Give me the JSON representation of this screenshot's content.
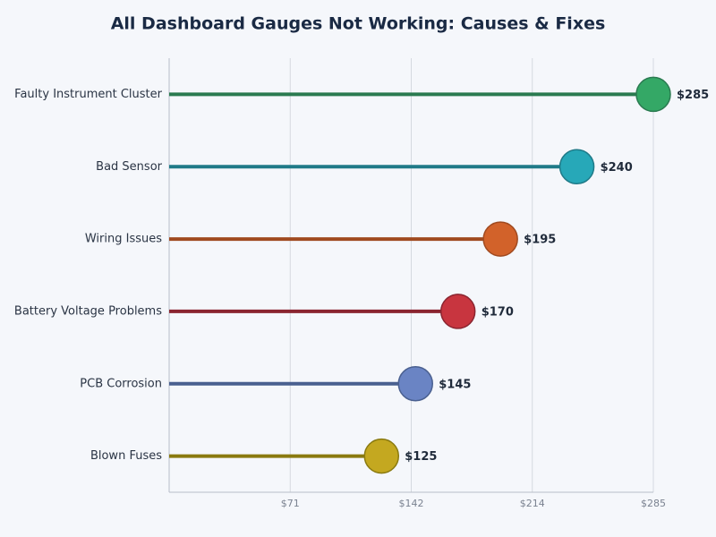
{
  "chart_data": {
    "type": "lollipop",
    "orientation": "horizontal",
    "title": "All Dashboard Gauges Not Working: Causes & Fixes",
    "categories": [
      "Faulty Instrument Cluster",
      "Bad Sensor",
      "Wiring Issues",
      "Battery Voltage Problems",
      "PCB Corrosion",
      "Blown Fuses"
    ],
    "values": [
      285,
      240,
      195,
      170,
      145,
      125
    ],
    "value_labels": [
      "$285",
      "$240",
      "$195",
      "$170",
      "$145",
      "$125"
    ],
    "colors": [
      "#34a866",
      "#27a8b8",
      "#d2622a",
      "#c8353f",
      "#6a84c4",
      "#c4a820"
    ],
    "stem_colors": [
      "#2a7a50",
      "#1f7a88",
      "#a04a20",
      "#8a2530",
      "#4a6090",
      "#8a7a10"
    ],
    "xlim": [
      0,
      285
    ],
    "xticks": [
      {
        "value": 71.25,
        "label": "$71"
      },
      {
        "value": 142.5,
        "label": "$142"
      },
      {
        "value": 213.75,
        "label": "$214"
      },
      {
        "value": 285,
        "label": "$285"
      }
    ],
    "grid": true
  }
}
